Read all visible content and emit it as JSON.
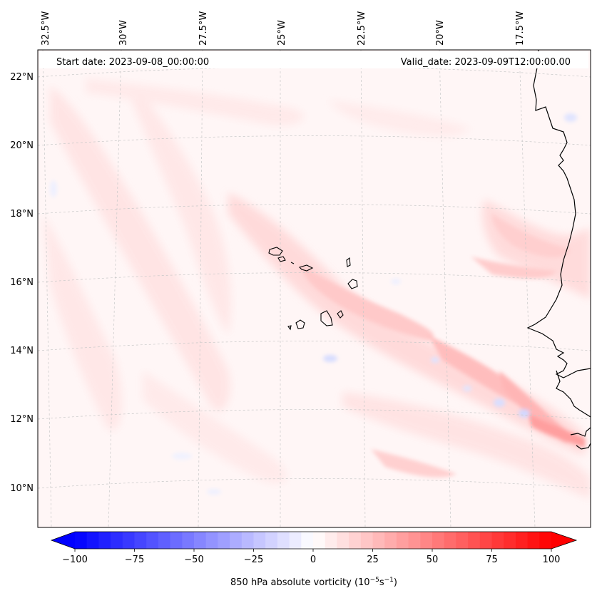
{
  "header": {
    "start_date": "Start date: 2023-09-08_00:00:00",
    "valid_date": "Valid_date: 2023-09-09T12:00:00.00"
  },
  "lon_labels": [
    "32.5°W",
    "30°W",
    "27.5°W",
    "25°W",
    "22.5°W",
    "20°W",
    "17.5°W"
  ],
  "lat_labels": [
    "22°N",
    "20°N",
    "18°N",
    "16°N",
    "14°N",
    "12°N",
    "10°N"
  ],
  "colorbar": {
    "ticks": [
      "−100",
      "−75",
      "−50",
      "−25",
      "0",
      "25",
      "50",
      "75",
      "100"
    ],
    "range": [
      -100,
      100
    ],
    "levels": 41,
    "negative_color": "#0000ff",
    "positive_color": "#ff0000",
    "label_main": "850 hPa absolute vorticity (10",
    "label_sup1": "−5",
    "label_mid": "s",
    "label_sup2": "−1",
    "label_end": ")"
  },
  "map": {
    "projection": "Lambert conformal",
    "region": "Cabo Verde Islands and West African coast",
    "background_color": "#fff5f5",
    "features": [
      "coastline",
      "gridlines",
      "vorticity-field"
    ]
  }
}
